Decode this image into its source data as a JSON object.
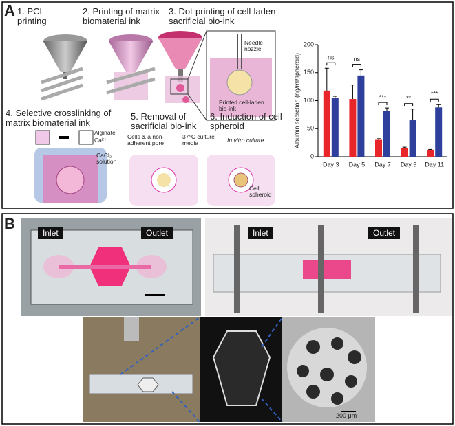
{
  "panel_a": {
    "label": "A",
    "steps": [
      "1. PCL printing",
      "2. Printing of matrix biomaterial ink",
      "3. Dot-printing of cell-laden sacrificial bio-ink",
      "4. Selective crosslinking of matrix biomaterial ink",
      "5. Removal of sacrificial bio-ink",
      "6. Induction of cell spheroid"
    ],
    "annotations": [
      "Needle nozzle",
      "Printed cell-laden bio-ink",
      "Alginate",
      "Ca²⁺",
      "CaCl₂ solution",
      "Cells & a non-adherent pore",
      "37°C culture media",
      "In vitro culture",
      "Cell spheroid"
    ]
  },
  "chart_data": {
    "type": "bar",
    "y_label": "Albumin secretion (ng/ml/spheroid)",
    "categories": [
      "Day 3",
      "Day 5",
      "Day 7",
      "Day 9",
      "Day 11"
    ],
    "series": [
      {
        "color": "#e8262a",
        "values": [
          118,
          103,
          30,
          15,
          12
        ],
        "errors": [
          40,
          25,
          2,
          2,
          1
        ]
      },
      {
        "color": "#2e3f9c",
        "values": [
          105,
          145,
          82,
          65,
          88
        ],
        "errors": [
          3,
          10,
          5,
          20,
          5
        ]
      }
    ],
    "significance": [
      "ns",
      "ns",
      "***",
      "**",
      "***"
    ],
    "ylim": [
      0,
      200
    ],
    "yticks": [
      0,
      50,
      100,
      150,
      200
    ]
  },
  "panel_b": {
    "label": "B",
    "tags": [
      "Inlet",
      "Outlet",
      "Inlet",
      "Outlet"
    ],
    "scale_bar": "200 μm"
  }
}
